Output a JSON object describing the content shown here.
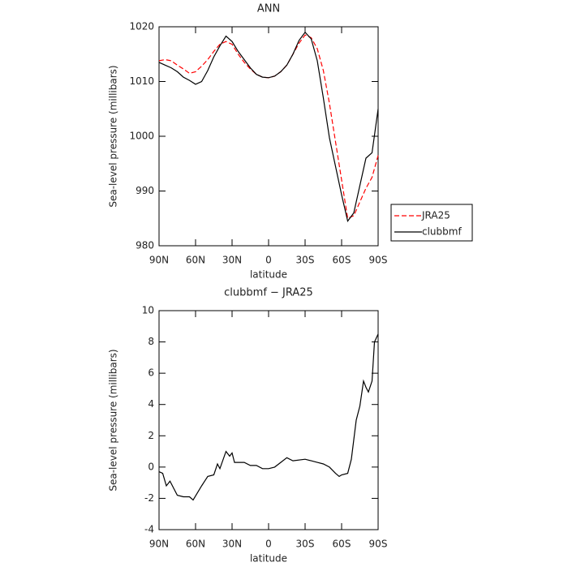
{
  "chart_data": [
    {
      "type": "line",
      "title": "ANN",
      "xlabel": "latitude",
      "ylabel": "Sea-level pressure (millibars)",
      "x": [
        90,
        85,
        80,
        75,
        70,
        65,
        60,
        55,
        50,
        45,
        40,
        35,
        30,
        25,
        20,
        15,
        10,
        5,
        0,
        -5,
        -10,
        -15,
        -20,
        -25,
        -30,
        -35,
        -40,
        -45,
        -50,
        -55,
        -60,
        -65,
        -70,
        -75,
        -80,
        -85,
        -90
      ],
      "series": [
        {
          "name": "JRA25",
          "color": "#ff0000",
          "style": "dashed",
          "values": [
            1013.8,
            1014,
            1013.8,
            1013,
            1012.3,
            1011.5,
            1011.8,
            1012.8,
            1014,
            1015.5,
            1016.8,
            1017.3,
            1016.8,
            1015,
            1013.5,
            1012.3,
            1011.3,
            1010.8,
            1010.7,
            1011,
            1011.8,
            1013,
            1015,
            1017,
            1018.5,
            1018,
            1016,
            1012,
            1006,
            999,
            992,
            985,
            985.5,
            988,
            990.5,
            992.5,
            996.5
          ]
        },
        {
          "name": "clubbmf",
          "color": "#000000",
          "style": "solid",
          "values": [
            1013.5,
            1013,
            1012.5,
            1011.8,
            1010.8,
            1010.2,
            1009.5,
            1010,
            1012,
            1014.5,
            1016.5,
            1018.3,
            1017.3,
            1015.5,
            1014,
            1012.5,
            1011.3,
            1010.8,
            1010.7,
            1011,
            1011.8,
            1013,
            1015,
            1017.5,
            1019,
            1017.8,
            1013.8,
            1007,
            999.7,
            994.5,
            989.3,
            984.5,
            986,
            991,
            996,
            997,
            1005
          ]
        }
      ],
      "xlim": [
        90,
        -90
      ],
      "xticks": [
        {
          "value": 90,
          "label": "90N"
        },
        {
          "value": 60,
          "label": "60N"
        },
        {
          "value": 30,
          "label": "30N"
        },
        0,
        {
          "value": -30,
          "label": "30S"
        },
        {
          "value": -60,
          "label": "60S"
        },
        {
          "value": -90,
          "label": "90S"
        }
      ],
      "ylim": [
        980,
        1020
      ],
      "yticks": [
        980,
        990,
        1000,
        1010,
        1020
      ],
      "legend": "right"
    },
    {
      "type": "line",
      "title": "clubbmf − JRA25",
      "xlabel": "latitude",
      "ylabel": "Sea-level pressure (millibars)",
      "x": [
        90,
        87,
        84,
        81,
        75,
        70,
        65,
        62,
        55,
        50,
        45,
        42,
        40,
        35,
        32,
        30,
        28,
        20,
        15,
        10,
        5,
        0,
        -5,
        -10,
        -15,
        -20,
        -30,
        -35,
        -40,
        -45,
        -50,
        -55,
        -58,
        -60,
        -65,
        -68,
        -72,
        -75,
        -78,
        -80,
        -82,
        -85,
        -87,
        -90
      ],
      "series": [
        {
          "color": "#000000",
          "style": "solid",
          "values": [
            -0.3,
            -0.4,
            -1.2,
            -0.9,
            -1.8,
            -1.9,
            -1.9,
            -2.1,
            -1.2,
            -0.6,
            -0.5,
            0.2,
            -0.1,
            1.0,
            0.7,
            0.9,
            0.3,
            0.3,
            0.1,
            0.1,
            -0.1,
            -0.1,
            0,
            0.3,
            0.6,
            0.4,
            0.5,
            0.4,
            0.3,
            0.2,
            0,
            -0.4,
            -0.6,
            -0.5,
            -0.4,
            0.5,
            3,
            3.9,
            5.5,
            5.1,
            4.8,
            5.5,
            8,
            8.5
          ]
        }
      ],
      "xlim": [
        90,
        -90
      ],
      "xticks": [
        {
          "value": 90,
          "label": "90N"
        },
        {
          "value": 60,
          "label": "60N"
        },
        {
          "value": 30,
          "label": "30N"
        },
        0,
        {
          "value": -30,
          "label": "30S"
        },
        {
          "value": -60,
          "label": "60S"
        },
        {
          "value": -90,
          "label": "90S"
        }
      ],
      "ylim": [
        -4,
        10
      ],
      "yticks": [
        -4,
        -2,
        0,
        2,
        4,
        6,
        8,
        10
      ]
    }
  ]
}
